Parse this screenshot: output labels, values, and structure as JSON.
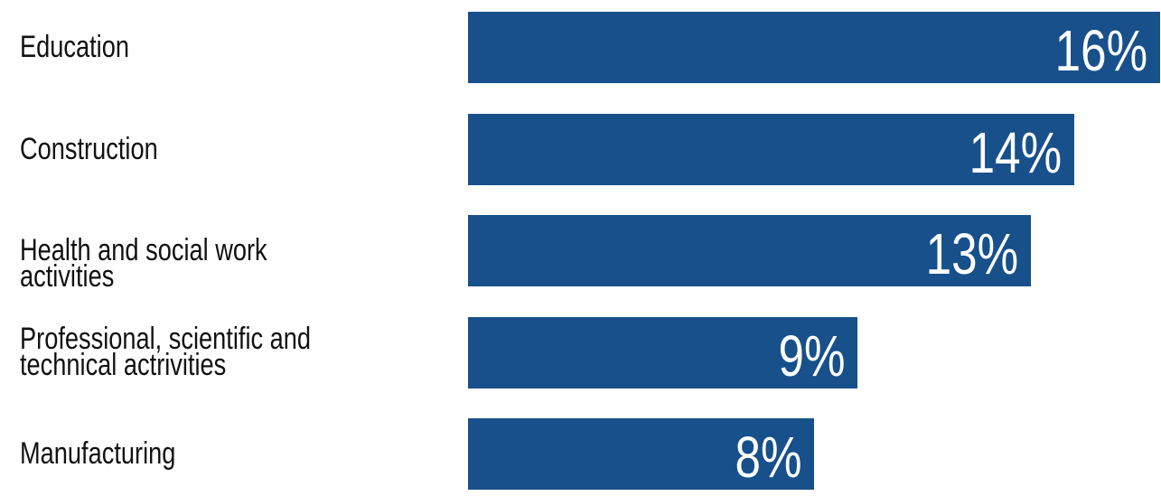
{
  "chart_data": {
    "type": "bar",
    "orientation": "horizontal",
    "categories": [
      "Education",
      "Construction",
      "Health and social work activities",
      "Professional, scientific and\ntechnical actrivities",
      "Manufacturing"
    ],
    "values": [
      16,
      14,
      13,
      9,
      8
    ],
    "value_labels": [
      "16%",
      "14%",
      "13%",
      "9%",
      "8%"
    ],
    "unit": "%",
    "bar_color": "#17508a",
    "label_color": "#111111",
    "value_label_color": "#ffffff",
    "grid": false,
    "legend": "none"
  }
}
